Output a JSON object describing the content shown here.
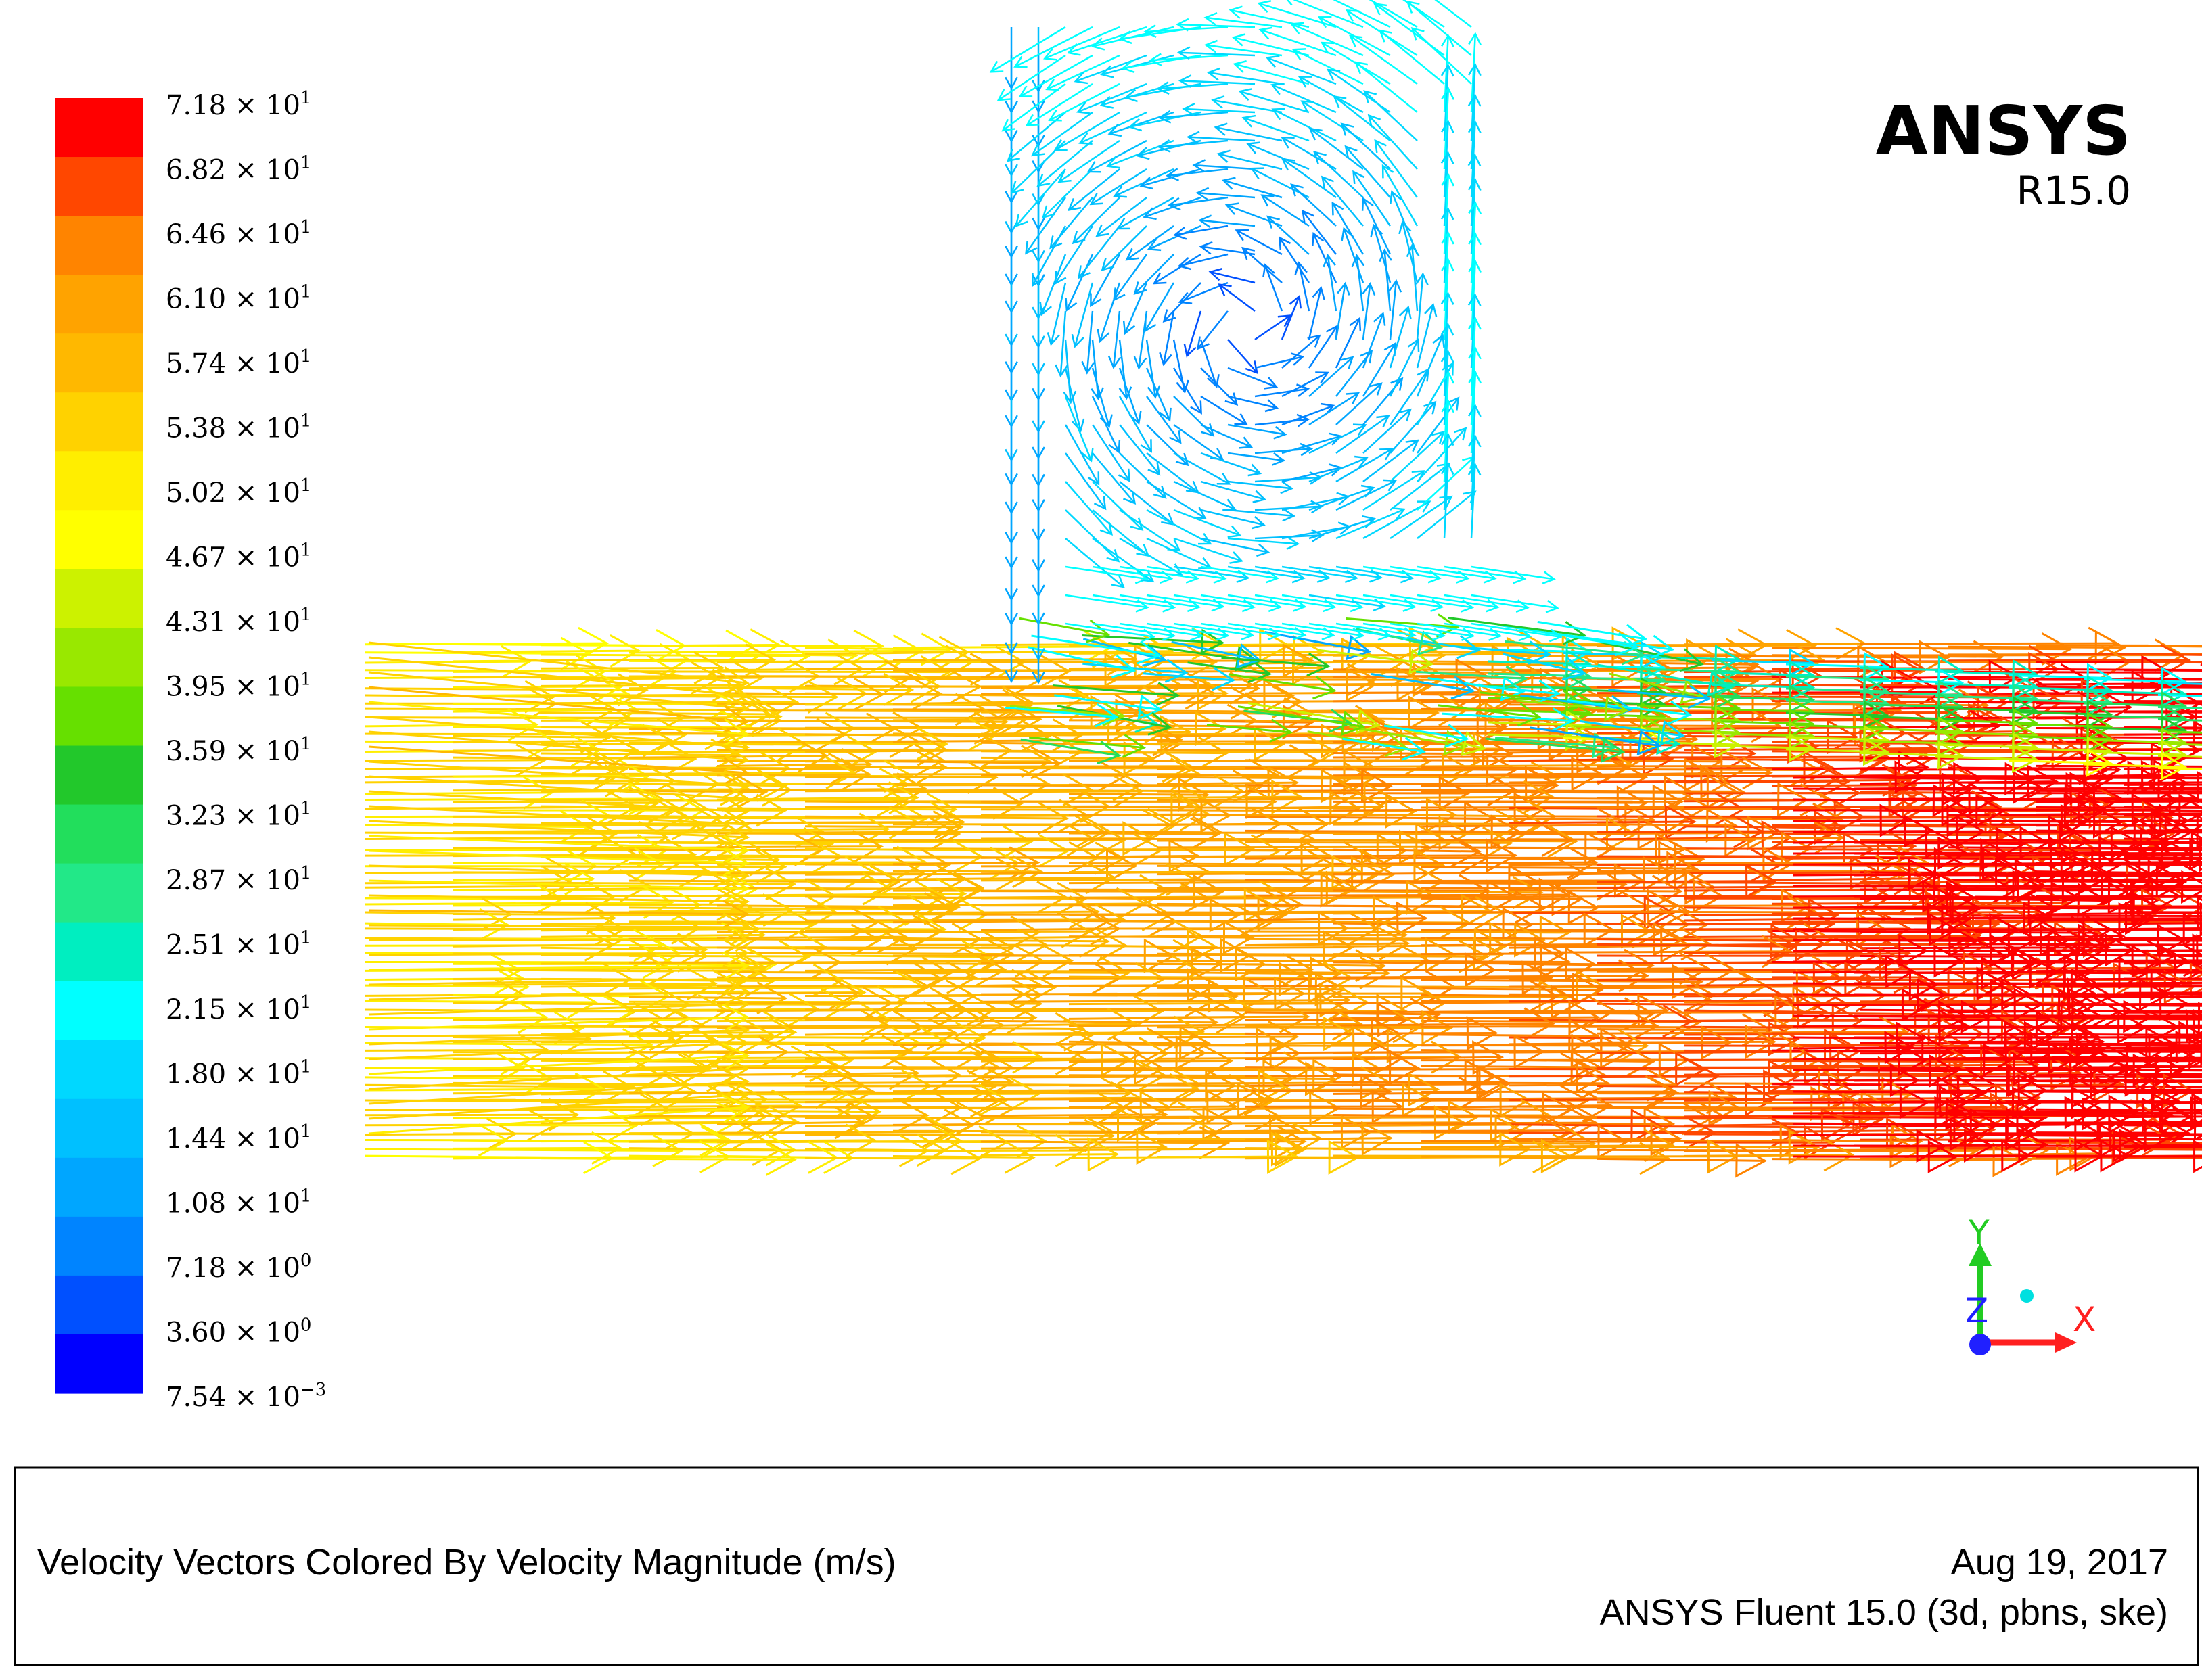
{
  "brand": {
    "name": "ANSYS",
    "release": "R15.0"
  },
  "legend": {
    "colors": [
      "#ff0000",
      "#ff4700",
      "#ff8400",
      "#ffa300",
      "#ffb800",
      "#ffd200",
      "#ffee00",
      "#ffff00",
      "#ccf200",
      "#99e800",
      "#66e000",
      "#22c82b",
      "#22de5c",
      "#22e888",
      "#00eec0",
      "#00ffff",
      "#00d8ff",
      "#00c0ff",
      "#00a6ff",
      "#0084ff",
      "#0050ff",
      "#0000ff"
    ],
    "labels": [
      {
        "m": "7.18",
        "e": "1"
      },
      {
        "m": "6.82",
        "e": "1"
      },
      {
        "m": "6.46",
        "e": "1"
      },
      {
        "m": "6.10",
        "e": "1"
      },
      {
        "m": "5.74",
        "e": "1"
      },
      {
        "m": "5.38",
        "e": "1"
      },
      {
        "m": "5.02",
        "e": "1"
      },
      {
        "m": "4.67",
        "e": "1"
      },
      {
        "m": "4.31",
        "e": "1"
      },
      {
        "m": "3.95",
        "e": "1"
      },
      {
        "m": "3.59",
        "e": "1"
      },
      {
        "m": "3.23",
        "e": "1"
      },
      {
        "m": "2.87",
        "e": "1"
      },
      {
        "m": "2.51",
        "e": "1"
      },
      {
        "m": "2.15",
        "e": "1"
      },
      {
        "m": "1.80",
        "e": "1"
      },
      {
        "m": "1.44",
        "e": "1"
      },
      {
        "m": "1.08",
        "e": "1"
      },
      {
        "m": "7.18",
        "e": "0"
      },
      {
        "m": "3.60",
        "e": "0"
      },
      {
        "m": "7.54",
        "e": "−3"
      }
    ],
    "times": "×"
  },
  "axes": {
    "x": "X",
    "y": "Y",
    "z": "Z",
    "x_color": "#ff2020",
    "y_color": "#22cc22",
    "z_color": "#2020ff"
  },
  "footer": {
    "title": "Velocity Vectors Colored By Velocity Magnitude (m/s)",
    "date": "Aug 19, 2017",
    "solver": "ANSYS Fluent 15.0 (3d, pbns, ske)"
  },
  "chart_data": {
    "type": "vector-field",
    "quantity": "Velocity Magnitude",
    "unit": "m/s",
    "colormap_range": [
      0.00754,
      71.8
    ],
    "regions": [
      {
        "region": "main-duct-upstream",
        "direction": "+x",
        "speed_range": [
          50,
          57
        ]
      },
      {
        "region": "main-duct-middle",
        "direction": "+x",
        "speed_range": [
          57,
          64
        ]
      },
      {
        "region": "main-duct-downstream",
        "direction": "+x",
        "speed_range": [
          64,
          71.8
        ]
      },
      {
        "region": "branch-inlet-left",
        "direction": "-y",
        "speed_range": [
          3.6,
          14.4
        ]
      },
      {
        "region": "branch-vortex-core",
        "direction": "recirculating",
        "speed_range": [
          0,
          10.8
        ]
      },
      {
        "region": "branch-right-wall",
        "direction": "+y / recirculating",
        "speed_range": [
          14.4,
          21.5
        ]
      },
      {
        "region": "junction-shear-layer",
        "direction": "+x",
        "speed_range": [
          21.5,
          50
        ]
      }
    ]
  }
}
